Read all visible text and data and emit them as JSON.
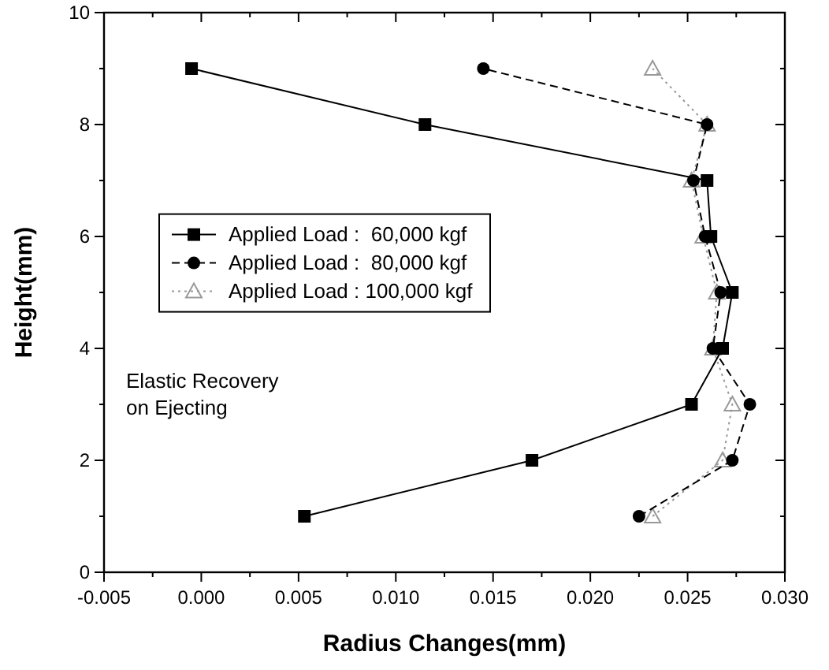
{
  "chart_data": {
    "type": "line",
    "xlabel": "Radius Changes(mm)",
    "ylabel": "Height(mm)",
    "xlim": [
      -0.005,
      0.03
    ],
    "xticks": [
      {
        "value": -0.005,
        "label": "-0.005"
      },
      {
        "value": 0,
        "label": "0.000"
      },
      {
        "value": 0.005,
        "label": "0.005"
      },
      {
        "value": 0.01,
        "label": "0.010"
      },
      {
        "value": 0.015,
        "label": "0.015"
      },
      {
        "value": 0.02,
        "label": "0.020"
      },
      {
        "value": 0.025,
        "label": "0.025"
      },
      {
        "value": 0.03,
        "label": "0.030"
      }
    ],
    "ylim": [
      0,
      10
    ],
    "yticks": [
      0,
      2,
      4,
      6,
      8,
      10
    ],
    "grid": false,
    "legend": "left",
    "annotations": [
      "Elastic Recovery\non Ejecting"
    ],
    "series": [
      {
        "name": "Applied Load :  60,000 kgf",
        "color": "#000000",
        "marker": "square",
        "line_style": "solid",
        "x": [
          0.0053,
          0.017,
          0.0252,
          0.0268,
          0.0273,
          0.0262,
          0.026,
          0.0115,
          -0.0005
        ],
        "values": [
          1,
          2,
          3,
          4,
          5,
          6,
          7,
          8,
          9
        ]
      },
      {
        "name": "Applied Load :  80,000 kgf",
        "color": "#000000",
        "marker": "circle",
        "line_style": "dashed",
        "x": [
          0.0225,
          0.0273,
          0.0282,
          0.0263,
          0.0267,
          0.0259,
          0.0253,
          0.026,
          0.0145
        ],
        "values": [
          1,
          2,
          3,
          4,
          5,
          6,
          7,
          8,
          9
        ]
      },
      {
        "name": "Applied Load : 100,000 kgf",
        "color": "#999999",
        "marker": "triangle",
        "line_style": "dotted",
        "x": [
          0.0232,
          0.0268,
          0.0273,
          0.0263,
          0.0265,
          0.0258,
          0.0252,
          0.026,
          0.0232
        ],
        "values": [
          1,
          2,
          3,
          4,
          5,
          6,
          7,
          8,
          9
        ]
      }
    ]
  }
}
